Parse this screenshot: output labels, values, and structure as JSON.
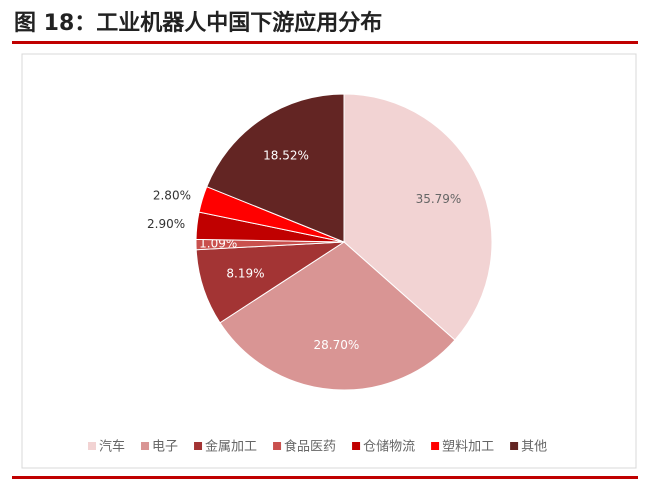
{
  "chart_data": {
    "type": "pie",
    "title": "图 18：工业机器人中国下游应用分布",
    "categories": [
      "汽车",
      "电子",
      "金属加工",
      "食品医药",
      "仓储物流",
      "塑料加工",
      "其他"
    ],
    "values": [
      35.79,
      28.7,
      8.19,
      1.09,
      2.9,
      2.8,
      18.52
    ],
    "value_labels": [
      "35.79%",
      "28.70%",
      "8.19%",
      "1.09%",
      "2.90%",
      "2.80%",
      "18.52%"
    ],
    "colors": [
      "#f2d3d3",
      "#d99594",
      "#a33434",
      "#c9504d",
      "#c00000",
      "#ff0000",
      "#632523"
    ],
    "legend": "bottom"
  }
}
